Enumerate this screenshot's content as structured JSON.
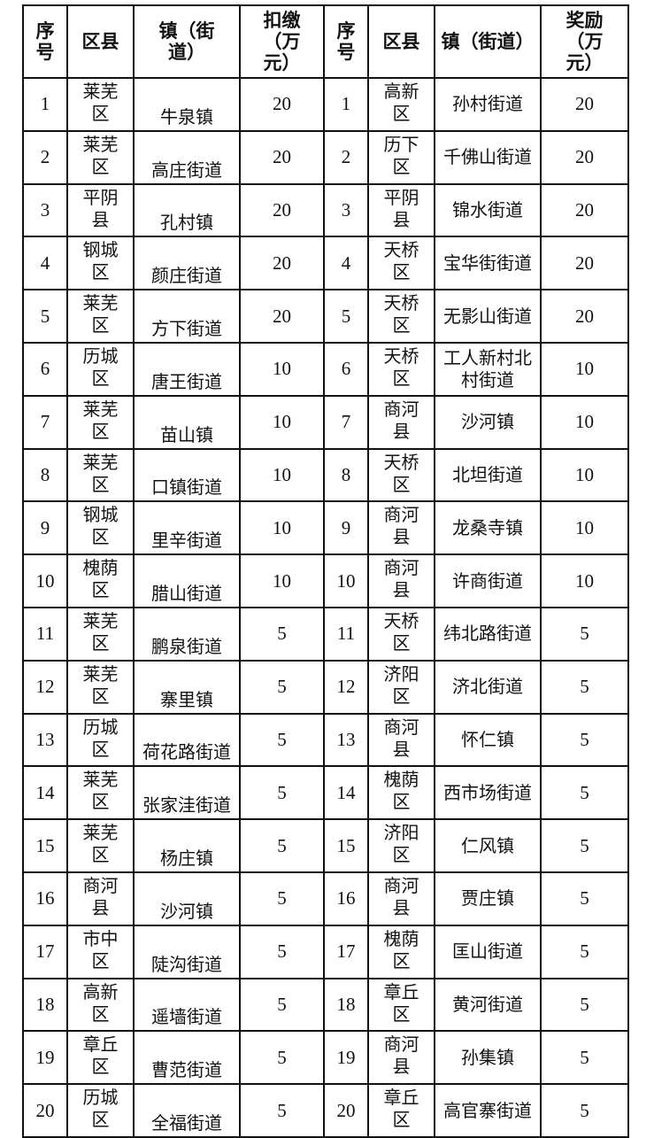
{
  "headers": {
    "seq_left": "序号",
    "region_left": "区县",
    "town_left": "镇（街道）",
    "amount_left": "扣缴（万元）",
    "seq_right": "序号",
    "region_right": "区县",
    "town_right": "镇（街道）",
    "amount_right": "奖励（万元）"
  },
  "rows": [
    {
      "l_seq": "1",
      "l_region": "莱芜区",
      "l_town": "牛泉镇",
      "l_amount": "20",
      "r_seq": "1",
      "r_region": "高新区",
      "r_town": "孙村街道",
      "r_amount": "20"
    },
    {
      "l_seq": "2",
      "l_region": "莱芜区",
      "l_town": "高庄街道",
      "l_amount": "20",
      "r_seq": "2",
      "r_region": "历下区",
      "r_town": "千佛山街道",
      "r_amount": "20"
    },
    {
      "l_seq": "3",
      "l_region": "平阴县",
      "l_town": "孔村镇",
      "l_amount": "20",
      "r_seq": "3",
      "r_region": "平阴县",
      "r_town": "锦水街道",
      "r_amount": "20"
    },
    {
      "l_seq": "4",
      "l_region": "钢城区",
      "l_town": "颜庄街道",
      "l_amount": "20",
      "r_seq": "4",
      "r_region": "天桥区",
      "r_town": "宝华街街道",
      "r_amount": "20"
    },
    {
      "l_seq": "5",
      "l_region": "莱芜区",
      "l_town": "方下街道",
      "l_amount": "20",
      "r_seq": "5",
      "r_region": "天桥区",
      "r_town": "无影山街道",
      "r_amount": "20"
    },
    {
      "l_seq": "6",
      "l_region": "历城区",
      "l_town": "唐王街道",
      "l_amount": "10",
      "r_seq": "6",
      "r_region": "天桥区",
      "r_town": "工人新村北村街道",
      "r_amount": "10"
    },
    {
      "l_seq": "7",
      "l_region": "莱芜区",
      "l_town": "苗山镇",
      "l_amount": "10",
      "r_seq": "7",
      "r_region": "商河县",
      "r_town": "沙河镇",
      "r_amount": "10"
    },
    {
      "l_seq": "8",
      "l_region": "莱芜区",
      "l_town": "口镇街道",
      "l_amount": "10",
      "r_seq": "8",
      "r_region": "天桥区",
      "r_town": "北坦街道",
      "r_amount": "10"
    },
    {
      "l_seq": "9",
      "l_region": "钢城区",
      "l_town": "里辛街道",
      "l_amount": "10",
      "r_seq": "9",
      "r_region": "商河县",
      "r_town": "龙桑寺镇",
      "r_amount": "10"
    },
    {
      "l_seq": "10",
      "l_region": "槐荫区",
      "l_town": "腊山街道",
      "l_amount": "10",
      "r_seq": "10",
      "r_region": "商河县",
      "r_town": "许商街道",
      "r_amount": "10"
    },
    {
      "l_seq": "11",
      "l_region": "莱芜区",
      "l_town": "鹏泉街道",
      "l_amount": "5",
      "r_seq": "11",
      "r_region": "天桥区",
      "r_town": "纬北路街道",
      "r_amount": "5"
    },
    {
      "l_seq": "12",
      "l_region": "莱芜区",
      "l_town": "寨里镇",
      "l_amount": "5",
      "r_seq": "12",
      "r_region": "济阳区",
      "r_town": "济北街道",
      "r_amount": "5"
    },
    {
      "l_seq": "13",
      "l_region": "历城区",
      "l_town": "荷花路街道",
      "l_amount": "5",
      "r_seq": "13",
      "r_region": "商河县",
      "r_town": "怀仁镇",
      "r_amount": "5"
    },
    {
      "l_seq": "14",
      "l_region": "莱芜区",
      "l_town": "张家洼街道",
      "l_amount": "5",
      "r_seq": "14",
      "r_region": "槐荫区",
      "r_town": "西市场街道",
      "r_amount": "5"
    },
    {
      "l_seq": "15",
      "l_region": "莱芜区",
      "l_town": "杨庄镇",
      "l_amount": "5",
      "r_seq": "15",
      "r_region": "济阳区",
      "r_town": "仁风镇",
      "r_amount": "5"
    },
    {
      "l_seq": "16",
      "l_region": "商河县",
      "l_town": "沙河镇",
      "l_amount": "5",
      "r_seq": "16",
      "r_region": "商河县",
      "r_town": "贾庄镇",
      "r_amount": "5"
    },
    {
      "l_seq": "17",
      "l_region": "市中区",
      "l_town": "陡沟街道",
      "l_amount": "5",
      "r_seq": "17",
      "r_region": "槐荫区",
      "r_town": "匡山街道",
      "r_amount": "5"
    },
    {
      "l_seq": "18",
      "l_region": "高新区",
      "l_town": "遥墙街道",
      "l_amount": "5",
      "r_seq": "18",
      "r_region": "章丘区",
      "r_town": "黄河街道",
      "r_amount": "5"
    },
    {
      "l_seq": "19",
      "l_region": "章丘区",
      "l_town": "曹范街道",
      "l_amount": "5",
      "r_seq": "19",
      "r_region": "商河县",
      "r_town": "孙集镇",
      "r_amount": "5"
    },
    {
      "l_seq": "20",
      "l_region": "历城区",
      "l_town": "全福街道",
      "l_amount": "5",
      "r_seq": "20",
      "r_region": "章丘区",
      "r_town": "高官寨街道",
      "r_amount": "5"
    }
  ]
}
